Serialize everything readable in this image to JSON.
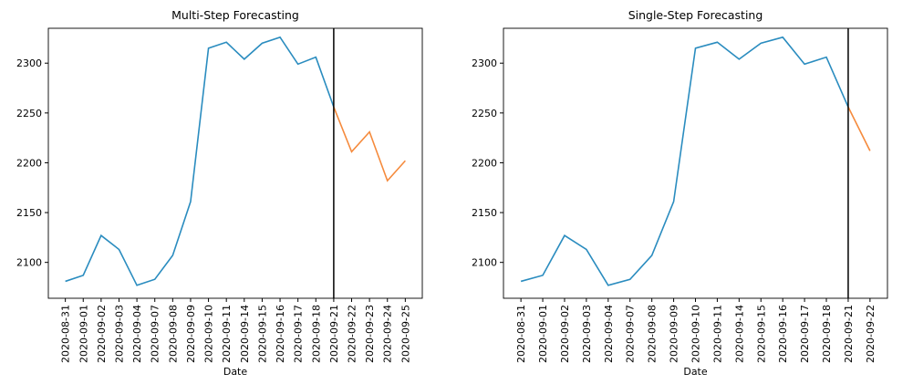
{
  "chart_data": [
    {
      "type": "line",
      "title": "Multi-Step Forecasting",
      "x_label": "Date",
      "categories": [
        "2020-08-31",
        "2020-09-01",
        "2020-09-02",
        "2020-09-03",
        "2020-09-04",
        "2020-09-07",
        "2020-09-08",
        "2020-09-09",
        "2020-09-10",
        "2020-09-11",
        "2020-09-14",
        "2020-09-15",
        "2020-09-16",
        "2020-09-17",
        "2020-09-18",
        "2020-09-21",
        "2020-09-22",
        "2020-09-23",
        "2020-09-24",
        "2020-09-25"
      ],
      "series": [
        {
          "color": "#2a8cbf",
          "values": [
            2081,
            2087,
            2127,
            2113,
            2077,
            2083,
            2107,
            2161,
            2315,
            2321,
            2304,
            2320,
            2326,
            2299,
            2306,
            2256,
            null,
            null,
            null,
            null
          ]
        },
        {
          "color": "#f58a3c",
          "values": [
            null,
            null,
            null,
            null,
            null,
            null,
            null,
            null,
            null,
            null,
            null,
            null,
            null,
            null,
            null,
            2256,
            2211,
            2231,
            2182,
            2202
          ]
        }
      ],
      "vline": "2020-09-21",
      "ylim": [
        2064,
        2335
      ],
      "yticks": [
        2100,
        2150,
        2200,
        2250,
        2300
      ]
    },
    {
      "type": "line",
      "title": "Single-Step Forecasting",
      "x_label": "Date",
      "categories": [
        "2020-08-31",
        "2020-09-01",
        "2020-09-02",
        "2020-09-03",
        "2020-09-04",
        "2020-09-07",
        "2020-09-08",
        "2020-09-09",
        "2020-09-10",
        "2020-09-11",
        "2020-09-14",
        "2020-09-15",
        "2020-09-16",
        "2020-09-17",
        "2020-09-18",
        "2020-09-21",
        "2020-09-22"
      ],
      "series": [
        {
          "color": "#2a8cbf",
          "values": [
            2081,
            2087,
            2127,
            2113,
            2077,
            2083,
            2107,
            2161,
            2315,
            2321,
            2304,
            2320,
            2326,
            2299,
            2306,
            2256,
            null
          ]
        },
        {
          "color": "#f58a3c",
          "values": [
            null,
            null,
            null,
            null,
            null,
            null,
            null,
            null,
            null,
            null,
            null,
            null,
            null,
            null,
            null,
            2256,
            2212
          ]
        }
      ],
      "vline": "2020-09-21",
      "ylim": [
        2064,
        2335
      ],
      "yticks": [
        2100,
        2150,
        2200,
        2250,
        2300
      ]
    }
  ]
}
